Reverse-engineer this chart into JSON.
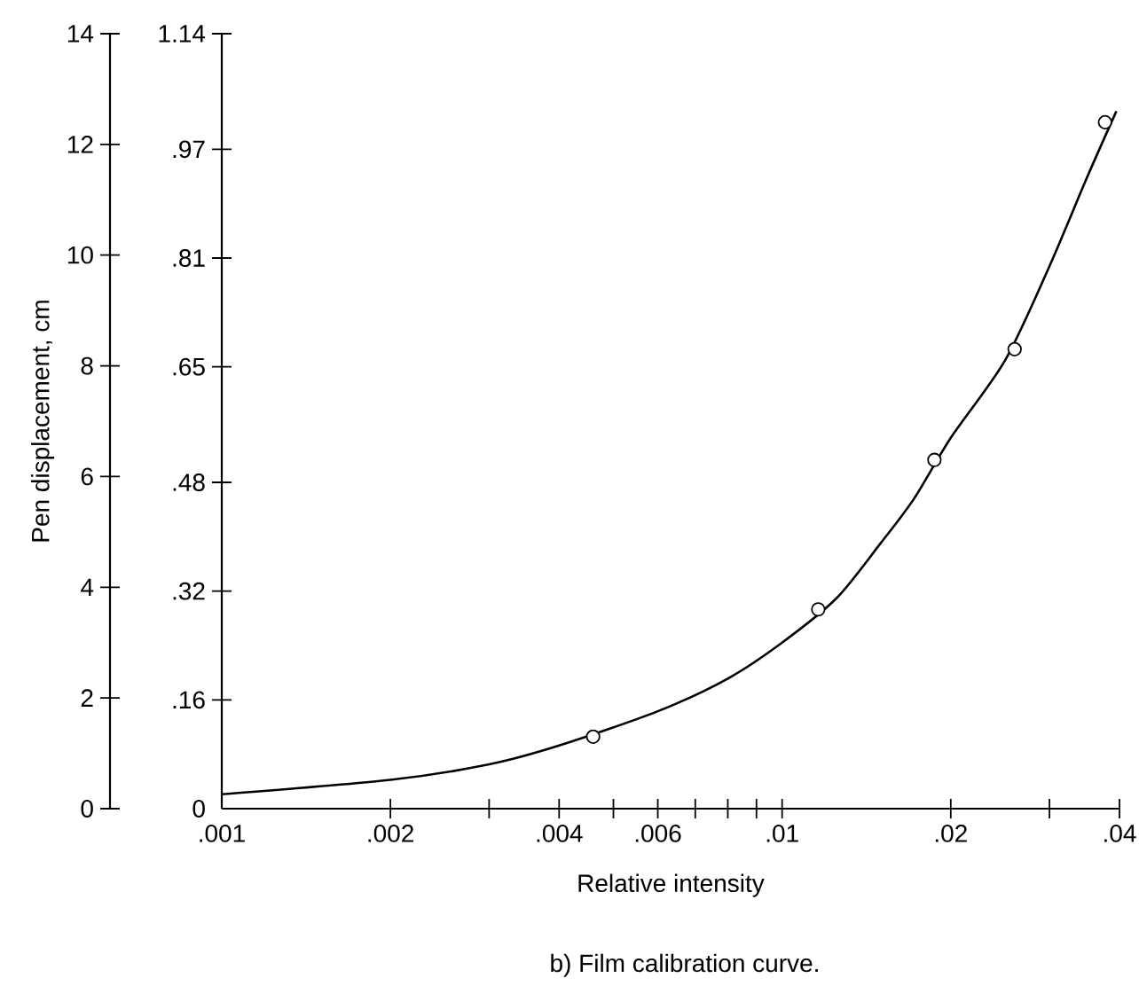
{
  "chart_data": {
    "type": "scatter",
    "xlabel": "Relative intensity",
    "ylabel": "Pen displacement, cm",
    "annotations": [
      "b) Film calibration curve."
    ],
    "log": "x",
    "grid": false,
    "xlim": [
      0.001,
      0.04
    ],
    "ylim": [
      0,
      14
    ],
    "xticks": [
      {
        "value": 0.001,
        "label": ".001"
      },
      {
        "value": 0.002,
        "label": ".002"
      },
      {
        "value": 0.003,
        "label": null
      },
      {
        "value": 0.004,
        "label": ".004"
      },
      {
        "value": 0.005,
        "label": null
      },
      {
        "value": 0.006,
        "label": ".006"
      },
      {
        "value": 0.007,
        "label": null
      },
      {
        "value": 0.008,
        "label": null
      },
      {
        "value": 0.009,
        "label": null
      },
      {
        "value": 0.01,
        "label": ".01"
      },
      {
        "value": 0.02,
        "label": ".02"
      },
      {
        "value": 0.03,
        "label": null
      },
      {
        "value": 0.04,
        "label": ".04"
      }
    ],
    "yticks": [
      0,
      2,
      4,
      6,
      8,
      10,
      12,
      14
    ],
    "y2lim": [
      0,
      1.14
    ],
    "y2ticks": [
      0,
      {
        "value": 0.16,
        "label": ".16"
      },
      {
        "value": 0.32,
        "label": ".32"
      },
      {
        "value": 0.48,
        "label": ".48"
      },
      {
        "value": 0.65,
        "label": ".65"
      },
      {
        "value": 0.81,
        "label": ".81"
      },
      {
        "value": 0.97,
        "label": ".97"
      },
      1.14
    ],
    "series": [
      {
        "type": "line",
        "color": "#000000",
        "marker": "none",
        "x": [
          0.001,
          0.002,
          0.003,
          0.004,
          0.006,
          0.008,
          0.01,
          0.0125,
          0.015,
          0.0172,
          0.02,
          0.025,
          0.03,
          0.035,
          0.0395
        ],
        "values": [
          0.26,
          0.52,
          0.8,
          1.14,
          1.76,
          2.35,
          3.0,
          3.8,
          4.8,
          5.6,
          6.7,
          8.1,
          9.8,
          11.4,
          12.6
        ]
      },
      {
        "type": "scatter",
        "color": "#000000",
        "marker": "circle",
        "x": [
          0.0046,
          0.0116,
          0.0187,
          0.026,
          0.0377
        ],
        "values": [
          1.3,
          3.6,
          6.3,
          8.3,
          12.4
        ]
      }
    ]
  }
}
